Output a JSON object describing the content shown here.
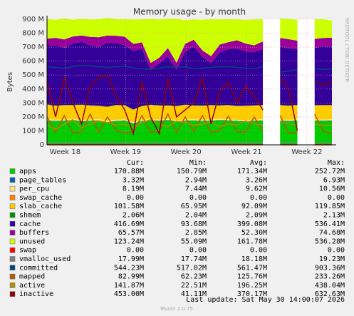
{
  "chart_data": {
    "type": "stacked-area",
    "title": "Memory usage - by month",
    "y_label": "Bytes",
    "side_text": "RRDTOOL / TOBI OETIKER",
    "footer": "Last update: Sat May 30 14:00:07 2026",
    "version": "Munin 2.0.75",
    "legend_headers": [
      "Cur:",
      "Min:",
      "Avg:",
      "Max:"
    ],
    "grid": true,
    "x": [
      0,
      1,
      2,
      3,
      4,
      5,
      6,
      7,
      8,
      9,
      10,
      11,
      12,
      13,
      14,
      15,
      16,
      17,
      18,
      19,
      20,
      21,
      22,
      23,
      24,
      25,
      26,
      27,
      28,
      29,
      30,
      31,
      32,
      33
    ],
    "xlim": [
      0,
      33
    ],
    "xticks": [
      {
        "value": 2.1,
        "label": "Week 18"
      },
      {
        "value": 9.1,
        "label": "Week 19"
      },
      {
        "value": 16.1,
        "label": "Week 20"
      },
      {
        "value": 23.1,
        "label": "Week 21"
      },
      {
        "value": 30.1,
        "label": "Week 22"
      }
    ],
    "ylim": [
      0,
      900000000
    ],
    "yticks": [
      0,
      {
        "value": 100000000,
        "label": "100 M"
      },
      {
        "value": 200000000,
        "label": "200 M"
      },
      {
        "value": 300000000,
        "label": "300 M"
      },
      {
        "value": 400000000,
        "label": "400 M"
      },
      {
        "value": 500000000,
        "label": "500 M"
      },
      {
        "value": 600000000,
        "label": "600 M"
      },
      {
        "value": 700000000,
        "label": "700 M"
      },
      {
        "value": 800000000,
        "label": "800 M"
      },
      {
        "value": 900000000,
        "label": "900 M"
      }
    ],
    "series": [
      {
        "name": "apps",
        "kind": "area",
        "color": "#00cc00",
        "cur": "170.88M",
        "min": "150.79M",
        "avg": "171.34M",
        "max": "252.72M",
        "values": [
          172000000.0,
          168000000.0,
          170000000.0,
          175000000.0,
          165000000.0,
          170000000.0,
          172000000.0,
          160000000.0,
          168000000.0,
          171000000.0,
          150000000.0,
          168000000.0,
          172000000.0,
          170000000.0,
          175000000.0,
          165000000.0,
          170000000.0,
          172000000.0,
          168000000.0,
          170000000.0,
          175000000.0,
          172000000.0,
          168000000.0,
          165000000.0,
          170000000.0,
          172000000.0,
          null,
          170000000.0,
          168000000.0,
          172000000.0,
          null,
          171000000.0,
          170000000.0,
          171000000.0
        ]
      },
      {
        "name": "page_tables",
        "kind": "area",
        "color": "#0066b3",
        "cur": "3.32M",
        "min": "2.94M",
        "avg": "3.26M",
        "max": "6.93M",
        "values": [
          3300000.0,
          3300000.0,
          3300000.0,
          3300000.0,
          3300000.0,
          3300000.0,
          3300000.0,
          3300000.0,
          3300000.0,
          3300000.0,
          3300000.0,
          3300000.0,
          3300000.0,
          3300000.0,
          3300000.0,
          3300000.0,
          3300000.0,
          3300000.0,
          3300000.0,
          3300000.0,
          3300000.0,
          3300000.0,
          3300000.0,
          3300000.0,
          3300000.0,
          3300000.0,
          null,
          3300000.0,
          3300000.0,
          3300000.0,
          null,
          3300000.0,
          3300000.0,
          3300000.0
        ]
      },
      {
        "name": "per_cpu",
        "kind": "area",
        "color": "#ffe680",
        "cur": "8.19M",
        "min": "7.44M",
        "avg": "9.62M",
        "max": "10.56M",
        "values": [
          8200000.0,
          8200000.0,
          8200000.0,
          8200000.0,
          8200000.0,
          8200000.0,
          8200000.0,
          8200000.0,
          8200000.0,
          8200000.0,
          8200000.0,
          8200000.0,
          8200000.0,
          8200000.0,
          8200000.0,
          8200000.0,
          8200000.0,
          8200000.0,
          8200000.0,
          8200000.0,
          8200000.0,
          8200000.0,
          8200000.0,
          8200000.0,
          8200000.0,
          8200000.0,
          null,
          8200000.0,
          8200000.0,
          8200000.0,
          null,
          8200000.0,
          8200000.0,
          8200000.0
        ]
      },
      {
        "name": "swap_cache",
        "kind": "area",
        "color": "#ff8000",
        "cur": "0.00",
        "min": "0.00",
        "avg": "0.00",
        "max": "0.00",
        "values": [
          0,
          0,
          0,
          0,
          0,
          0,
          0,
          0,
          0,
          0,
          0,
          0,
          0,
          0,
          0,
          0,
          0,
          0,
          0,
          0,
          0,
          0,
          0,
          0,
          0,
          0,
          null,
          0,
          0,
          0,
          null,
          0,
          0,
          0
        ]
      },
      {
        "name": "slab_cache",
        "kind": "area",
        "color": "#ffcc00",
        "cur": "101.58M",
        "min": "65.95M",
        "avg": "92.09M",
        "max": "119.85M",
        "values": [
          105000000.0,
          100000000.0,
          102000000.0,
          98000000.0,
          110000000.0,
          100000000.0,
          95000000.0,
          100000000.0,
          105000000.0,
          100000000.0,
          90000000.0,
          98000000.0,
          102000000.0,
          100000000.0,
          95000000.0,
          100000000.0,
          105000000.0,
          98000000.0,
          100000000.0,
          102000000.0,
          95000000.0,
          100000000.0,
          98000000.0,
          102000000.0,
          100000000.0,
          100000000.0,
          null,
          102000000.0,
          100000000.0,
          101000000.0,
          null,
          100000000.0,
          102000000.0,
          101000000.0
        ]
      },
      {
        "name": "shmem",
        "kind": "area",
        "color": "#008f00",
        "cur": "2.06M",
        "min": "2.04M",
        "avg": "2.09M",
        "max": "2.13M",
        "values": [
          2100000.0,
          2100000.0,
          2100000.0,
          2100000.0,
          2100000.0,
          2100000.0,
          2100000.0,
          2100000.0,
          2100000.0,
          2100000.0,
          2100000.0,
          2100000.0,
          2100000.0,
          2100000.0,
          2100000.0,
          2100000.0,
          2100000.0,
          2100000.0,
          2100000.0,
          2100000.0,
          2100000.0,
          2100000.0,
          2100000.0,
          2100000.0,
          2100000.0,
          2100000.0,
          null,
          2100000.0,
          2100000.0,
          2100000.0,
          null,
          2100000.0,
          2100000.0,
          2100000.0
        ]
      },
      {
        "name": "cache",
        "kind": "area",
        "color": "#330099",
        "cur": "416.69M",
        "min": "93.68M",
        "avg": "399.08M",
        "max": "536.41M",
        "values": [
          420000000.0,
          430000000.0,
          410000000.0,
          440000000.0,
          450000000.0,
          430000000.0,
          420000000.0,
          460000000.0,
          440000000.0,
          430000000.0,
          420000000.0,
          410000000.0,
          250000000.0,
          300000000.0,
          350000000.0,
          260000000.0,
          380000000.0,
          420000000.0,
          350000000.0,
          300000000.0,
          380000000.0,
          400000000.0,
          410000000.0,
          390000000.0,
          380000000.0,
          400000000.0,
          null,
          420000000.0,
          410000000.0,
          400000000.0,
          null,
          410000000.0,
          420000000.0,
          417000000.0
        ]
      },
      {
        "name": "buffers",
        "kind": "area",
        "color": "#990099",
        "cur": "65.57M",
        "min": "2.85M",
        "avg": "52.30M",
        "max": "74.68M",
        "values": [
          50000000.0,
          55000000.0,
          60000000.0,
          50000000.0,
          45000000.0,
          60000000.0,
          70000000.0,
          50000000.0,
          55000000.0,
          60000000.0,
          50000000.0,
          45000000.0,
          50000000.0,
          40000000.0,
          60000000.0,
          50000000.0,
          55000000.0,
          50000000.0,
          45000000.0,
          50000000.0,
          55000000.0,
          50000000.0,
          60000000.0,
          55000000.0,
          50000000.0,
          55000000.0,
          null,
          60000000.0,
          65000000.0,
          60000000.0,
          null,
          65000000.0,
          60000000.0,
          66000000.0
        ]
      },
      {
        "name": "unused",
        "kind": "area",
        "color": "#ccff00",
        "cur": "123.24M",
        "min": "55.09M",
        "avg": "161.78M",
        "max": "536.28M",
        "values": [
          140000000.0,
          130000000.0,
          150000000.0,
          120000000.0,
          120000000.0,
          125000000.0,
          130000000.0,
          125000000.0,
          120000000.0,
          125000000.0,
          175000000.0,
          165000000.0,
          315000000.0,
          275000000.0,
          210000000.0,
          315000000.0,
          170000000.0,
          145000000.0,
          220000000.0,
          265000000.0,
          180000000.0,
          165000000.0,
          150000000.0,
          170000000.0,
          185000000.0,
          160000000.0,
          null,
          140000000.0,
          145000000.0,
          150000000.0,
          null,
          140000000.0,
          135000000.0,
          123000000.0
        ]
      },
      {
        "name": "swap",
        "kind": "line",
        "color": "#ff0000",
        "cur": "0.00",
        "min": "0.00",
        "avg": "0.00",
        "max": "0.00",
        "values": [
          0,
          0,
          0,
          0,
          0,
          0,
          0,
          0,
          0,
          0,
          0,
          0,
          0,
          0,
          0,
          0,
          0,
          0,
          0,
          0,
          0,
          0,
          0,
          0,
          0,
          0,
          null,
          0,
          0,
          0,
          null,
          0,
          0,
          0
        ]
      },
      {
        "name": "vmalloc_used",
        "kind": "line",
        "color": "#808080",
        "cur": "17.99M",
        "min": "17.74M",
        "avg": "18.18M",
        "max": "19.23M",
        "values": [
          18000000.0,
          18000000.0,
          18000000.0,
          18000000.0,
          18000000.0,
          18000000.0,
          18000000.0,
          18000000.0,
          18000000.0,
          18000000.0,
          18000000.0,
          18000000.0,
          18000000.0,
          18000000.0,
          18000000.0,
          18000000.0,
          18000000.0,
          18000000.0,
          18000000.0,
          18000000.0,
          18000000.0,
          18000000.0,
          18000000.0,
          18000000.0,
          18000000.0,
          18000000.0,
          null,
          18000000.0,
          18000000.0,
          18000000.0,
          null,
          18000000.0,
          18000000.0,
          18000000.0
        ]
      },
      {
        "name": "committed",
        "kind": "line",
        "color": "#00487d",
        "cur": "544.23M",
        "min": "517.02M",
        "avg": "561.47M",
        "max": "903.36M",
        "values": [
          560000000.0,
          555000000.0,
          550000000.0,
          560000000.0,
          570000000.0,
          565000000.0,
          560000000.0,
          555000000.0,
          560000000.0,
          565000000.0,
          550000000.0,
          545000000.0,
          540000000.0,
          550000000.0,
          560000000.0,
          555000000.0,
          560000000.0,
          545000000.0,
          550000000.0,
          555000000.0,
          560000000.0,
          560000000.0,
          555000000.0,
          550000000.0,
          545000000.0,
          560000000.0,
          null,
          520000000.0,
          530000000.0,
          540000000.0,
          null,
          545000000.0,
          540000000.0,
          544000000.0
        ]
      },
      {
        "name": "mapped",
        "kind": "line",
        "color": "#b35a00",
        "cur": "82.99M",
        "min": "62.23M",
        "avg": "125.76M",
        "max": "233.26M",
        "values": [
          200000000.0,
          90000000.0,
          210000000.0,
          85000000.0,
          95000000.0,
          220000000.0,
          90000000.0,
          200000000.0,
          100000000.0,
          85000000.0,
          95000000.0,
          210000000.0,
          90000000.0,
          100000000.0,
          220000000.0,
          85000000.0,
          200000000.0,
          95000000.0,
          210000000.0,
          90000000.0,
          100000000.0,
          205000000.0,
          95000000.0,
          90000000.0,
          200000000.0,
          95000000.0,
          null,
          210000000.0,
          85000000.0,
          90000000.0,
          null,
          220000000.0,
          95000000.0,
          83000000.0
        ]
      },
      {
        "name": "active",
        "kind": "line",
        "color": "#b38f00",
        "cur": "141.87M",
        "min": "22.51M",
        "avg": "196.25M",
        "max": "438.04M",
        "values": [
          140000000.0,
          110000000.0,
          150000000.0,
          180000000.0,
          120000000.0,
          150000000.0,
          170000000.0,
          160000000.0,
          140000000.0,
          150000000.0,
          120000000.0,
          160000000.0,
          180000000.0,
          150000000.0,
          130000000.0,
          170000000.0,
          160000000.0,
          140000000.0,
          150000000.0,
          160000000.0,
          130000000.0,
          150000000.0,
          140000000.0,
          170000000.0,
          150000000.0,
          140000000.0,
          null,
          160000000.0,
          150000000.0,
          140000000.0,
          null,
          150000000.0,
          140000000.0,
          142000000.0
        ]
      },
      {
        "name": "inactive",
        "kind": "line",
        "color": "#8f0000",
        "cur": "453.00M",
        "min": "41.11M",
        "avg": "370.17M",
        "max": "632.63M",
        "values": [
          450000000.0,
          200000000.0,
          480000000.0,
          300000000.0,
          150000000.0,
          420000000.0,
          480000000.0,
          500000000.0,
          350000000.0,
          250000000.0,
          80000000.0,
          450000000.0,
          200000000.0,
          80000000.0,
          480000000.0,
          200000000.0,
          250000000.0,
          300000000.0,
          480000000.0,
          150000000.0,
          380000000.0,
          450000000.0,
          300000000.0,
          420000000.0,
          350000000.0,
          250000000.0,
          null,
          480000000.0,
          400000000.0,
          100000000.0,
          null,
          450000000.0,
          430000000.0,
          453000000.0
        ]
      }
    ]
  }
}
